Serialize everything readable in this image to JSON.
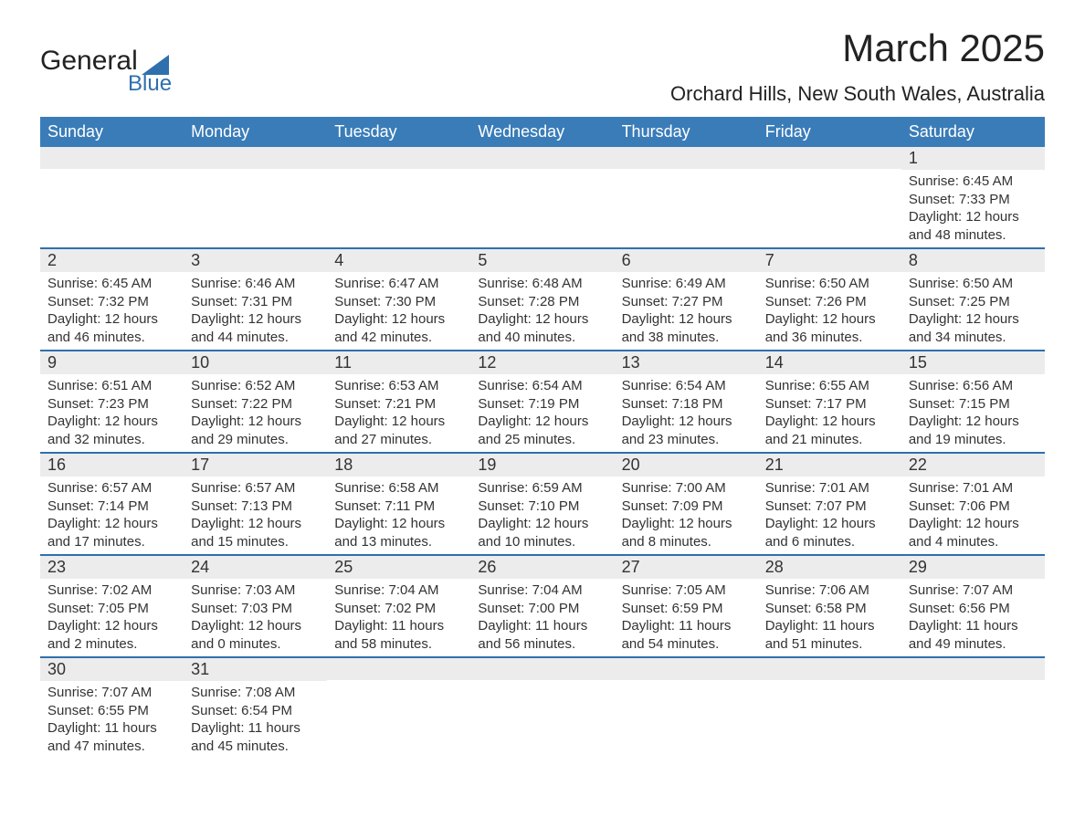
{
  "brand": {
    "text_general": "General",
    "text_blue": "Blue",
    "text_color": "#222222",
    "blue_color": "#2f6fae",
    "triangle_color": "#2f6fae"
  },
  "title": {
    "month_year": "March 2025",
    "location": "Orchard Hills, New South Wales, Australia",
    "title_fontsize": 42,
    "location_fontsize": 22
  },
  "style": {
    "header_bg": "#3a7cb8",
    "header_text_color": "#ffffff",
    "daynum_bg": "#ececec",
    "row_divider": "#2f6fae",
    "body_text_color": "#333333",
    "page_bg": "#ffffff",
    "th_fontsize": 18,
    "daynum_fontsize": 18,
    "cell_fontsize": 15,
    "columns": 7
  },
  "day_headers": [
    "Sunday",
    "Monday",
    "Tuesday",
    "Wednesday",
    "Thursday",
    "Friday",
    "Saturday"
  ],
  "weeks": [
    [
      null,
      null,
      null,
      null,
      null,
      null,
      {
        "n": "1",
        "sunrise": "Sunrise: 6:45 AM",
        "sunset": "Sunset: 7:33 PM",
        "daylight": "Daylight: 12 hours and 48 minutes."
      }
    ],
    [
      {
        "n": "2",
        "sunrise": "Sunrise: 6:45 AM",
        "sunset": "Sunset: 7:32 PM",
        "daylight": "Daylight: 12 hours and 46 minutes."
      },
      {
        "n": "3",
        "sunrise": "Sunrise: 6:46 AM",
        "sunset": "Sunset: 7:31 PM",
        "daylight": "Daylight: 12 hours and 44 minutes."
      },
      {
        "n": "4",
        "sunrise": "Sunrise: 6:47 AM",
        "sunset": "Sunset: 7:30 PM",
        "daylight": "Daylight: 12 hours and 42 minutes."
      },
      {
        "n": "5",
        "sunrise": "Sunrise: 6:48 AM",
        "sunset": "Sunset: 7:28 PM",
        "daylight": "Daylight: 12 hours and 40 minutes."
      },
      {
        "n": "6",
        "sunrise": "Sunrise: 6:49 AM",
        "sunset": "Sunset: 7:27 PM",
        "daylight": "Daylight: 12 hours and 38 minutes."
      },
      {
        "n": "7",
        "sunrise": "Sunrise: 6:50 AM",
        "sunset": "Sunset: 7:26 PM",
        "daylight": "Daylight: 12 hours and 36 minutes."
      },
      {
        "n": "8",
        "sunrise": "Sunrise: 6:50 AM",
        "sunset": "Sunset: 7:25 PM",
        "daylight": "Daylight: 12 hours and 34 minutes."
      }
    ],
    [
      {
        "n": "9",
        "sunrise": "Sunrise: 6:51 AM",
        "sunset": "Sunset: 7:23 PM",
        "daylight": "Daylight: 12 hours and 32 minutes."
      },
      {
        "n": "10",
        "sunrise": "Sunrise: 6:52 AM",
        "sunset": "Sunset: 7:22 PM",
        "daylight": "Daylight: 12 hours and 29 minutes."
      },
      {
        "n": "11",
        "sunrise": "Sunrise: 6:53 AM",
        "sunset": "Sunset: 7:21 PM",
        "daylight": "Daylight: 12 hours and 27 minutes."
      },
      {
        "n": "12",
        "sunrise": "Sunrise: 6:54 AM",
        "sunset": "Sunset: 7:19 PM",
        "daylight": "Daylight: 12 hours and 25 minutes."
      },
      {
        "n": "13",
        "sunrise": "Sunrise: 6:54 AM",
        "sunset": "Sunset: 7:18 PM",
        "daylight": "Daylight: 12 hours and 23 minutes."
      },
      {
        "n": "14",
        "sunrise": "Sunrise: 6:55 AM",
        "sunset": "Sunset: 7:17 PM",
        "daylight": "Daylight: 12 hours and 21 minutes."
      },
      {
        "n": "15",
        "sunrise": "Sunrise: 6:56 AM",
        "sunset": "Sunset: 7:15 PM",
        "daylight": "Daylight: 12 hours and 19 minutes."
      }
    ],
    [
      {
        "n": "16",
        "sunrise": "Sunrise: 6:57 AM",
        "sunset": "Sunset: 7:14 PM",
        "daylight": "Daylight: 12 hours and 17 minutes."
      },
      {
        "n": "17",
        "sunrise": "Sunrise: 6:57 AM",
        "sunset": "Sunset: 7:13 PM",
        "daylight": "Daylight: 12 hours and 15 minutes."
      },
      {
        "n": "18",
        "sunrise": "Sunrise: 6:58 AM",
        "sunset": "Sunset: 7:11 PM",
        "daylight": "Daylight: 12 hours and 13 minutes."
      },
      {
        "n": "19",
        "sunrise": "Sunrise: 6:59 AM",
        "sunset": "Sunset: 7:10 PM",
        "daylight": "Daylight: 12 hours and 10 minutes."
      },
      {
        "n": "20",
        "sunrise": "Sunrise: 7:00 AM",
        "sunset": "Sunset: 7:09 PM",
        "daylight": "Daylight: 12 hours and 8 minutes."
      },
      {
        "n": "21",
        "sunrise": "Sunrise: 7:01 AM",
        "sunset": "Sunset: 7:07 PM",
        "daylight": "Daylight: 12 hours and 6 minutes."
      },
      {
        "n": "22",
        "sunrise": "Sunrise: 7:01 AM",
        "sunset": "Sunset: 7:06 PM",
        "daylight": "Daylight: 12 hours and 4 minutes."
      }
    ],
    [
      {
        "n": "23",
        "sunrise": "Sunrise: 7:02 AM",
        "sunset": "Sunset: 7:05 PM",
        "daylight": "Daylight: 12 hours and 2 minutes."
      },
      {
        "n": "24",
        "sunrise": "Sunrise: 7:03 AM",
        "sunset": "Sunset: 7:03 PM",
        "daylight": "Daylight: 12 hours and 0 minutes."
      },
      {
        "n": "25",
        "sunrise": "Sunrise: 7:04 AM",
        "sunset": "Sunset: 7:02 PM",
        "daylight": "Daylight: 11 hours and 58 minutes."
      },
      {
        "n": "26",
        "sunrise": "Sunrise: 7:04 AM",
        "sunset": "Sunset: 7:00 PM",
        "daylight": "Daylight: 11 hours and 56 minutes."
      },
      {
        "n": "27",
        "sunrise": "Sunrise: 7:05 AM",
        "sunset": "Sunset: 6:59 PM",
        "daylight": "Daylight: 11 hours and 54 minutes."
      },
      {
        "n": "28",
        "sunrise": "Sunrise: 7:06 AM",
        "sunset": "Sunset: 6:58 PM",
        "daylight": "Daylight: 11 hours and 51 minutes."
      },
      {
        "n": "29",
        "sunrise": "Sunrise: 7:07 AM",
        "sunset": "Sunset: 6:56 PM",
        "daylight": "Daylight: 11 hours and 49 minutes."
      }
    ],
    [
      {
        "n": "30",
        "sunrise": "Sunrise: 7:07 AM",
        "sunset": "Sunset: 6:55 PM",
        "daylight": "Daylight: 11 hours and 47 minutes."
      },
      {
        "n": "31",
        "sunrise": "Sunrise: 7:08 AM",
        "sunset": "Sunset: 6:54 PM",
        "daylight": "Daylight: 11 hours and 45 minutes."
      },
      null,
      null,
      null,
      null,
      null
    ]
  ]
}
